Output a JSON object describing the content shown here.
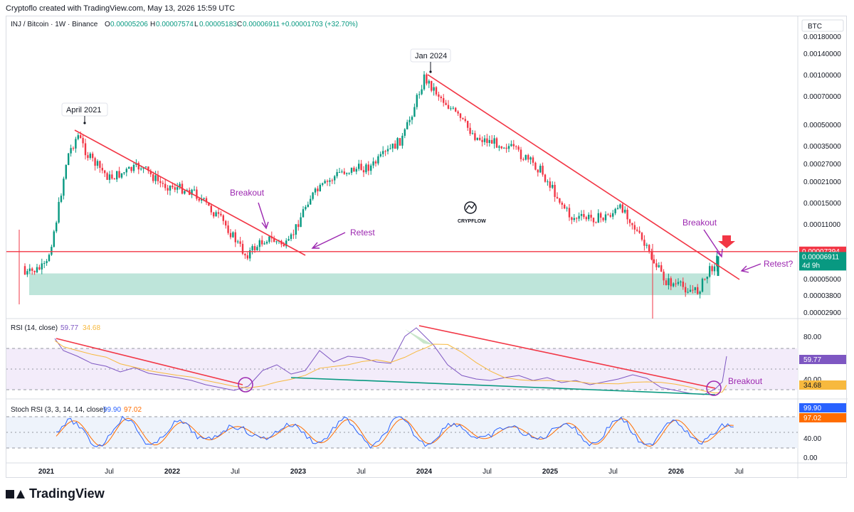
{
  "header": {
    "text": "Cryptoflo created with TradingView.com, May 13, 2026 15:59 UTC"
  },
  "footer": {
    "brand": "TradingView"
  },
  "chart_data": [
    {
      "type": "candlestick",
      "title": "INJ / Bitcoin · 1W · Binance",
      "ohlc_text": {
        "o_label": "O",
        "o": "0.00005206",
        "h_label": "H",
        "h": "0.00007574",
        "l_label": "L",
        "l": "0.00005183",
        "c_label": "C",
        "c": "0.00006911",
        "change": "+0.00001703 (+32.70%)"
      },
      "currency": "BTC",
      "y_scale": "log",
      "ylim": [
        2.7e-05,
        0.00021
      ],
      "y_ticks": [
        "0.00180000",
        "0.00140000",
        "0.00100000",
        "0.00070000",
        "0.00050000",
        "0.00035000",
        "0.00027000",
        "0.00021000",
        "0.00015000",
        "0.00011000",
        "0.00005000",
        "0.00003800",
        "0.00002900"
      ],
      "x_ticks": [
        "2021",
        "Jul",
        "2022",
        "Jul",
        "2023",
        "Jul",
        "2024",
        "Jul",
        "2025",
        "Jul",
        "2026",
        "Jul"
      ],
      "price_tags": [
        {
          "value": "0.00007394",
          "color": "#f23645"
        },
        {
          "value": "0.00006911",
          "sub": "4d 9h",
          "color": "#089981"
        }
      ],
      "close_series_approx": [
        {
          "x": "2021-01",
          "y": 6e-05
        },
        {
          "x": "2021-02",
          "y": 0.00012
        },
        {
          "x": "2021-03",
          "y": 0.0003
        },
        {
          "x": "2021-04",
          "y": 0.00042
        },
        {
          "x": "2021-05",
          "y": 0.0003
        },
        {
          "x": "2021-07",
          "y": 0.00022
        },
        {
          "x": "2021-10",
          "y": 0.00026
        },
        {
          "x": "2021-12",
          "y": 0.0002
        },
        {
          "x": "2022-03",
          "y": 0.00018
        },
        {
          "x": "2022-06",
          "y": 0.00011
        },
        {
          "x": "2022-08",
          "y": 7e-05
        },
        {
          "x": "2022-10",
          "y": 9e-05
        },
        {
          "x": "2022-12",
          "y": 8e-05
        },
        {
          "x": "2023-02",
          "y": 0.00016
        },
        {
          "x": "2023-05",
          "y": 0.00024
        },
        {
          "x": "2023-08",
          "y": 0.00026
        },
        {
          "x": "2023-11",
          "y": 0.0004
        },
        {
          "x": "2024-01",
          "y": 0.00095
        },
        {
          "x": "2024-03",
          "y": 0.00065
        },
        {
          "x": "2024-06",
          "y": 0.0004
        },
        {
          "x": "2024-09",
          "y": 0.00035
        },
        {
          "x": "2024-12",
          "y": 0.00025
        },
        {
          "x": "2025-03",
          "y": 0.00012
        },
        {
          "x": "2025-06",
          "y": 0.00012
        },
        {
          "x": "2025-08",
          "y": 0.00014
        },
        {
          "x": "2025-10",
          "y": 8e-05
        },
        {
          "x": "2025-12",
          "y": 4.8e-05
        },
        {
          "x": "2026-03",
          "y": 4e-05
        },
        {
          "x": "2026-05",
          "y": 6.911e-05
        }
      ],
      "annotations": [
        "April 2021",
        "Jan 2024",
        "Breakout",
        "Retest",
        "Breakout",
        "Retest?"
      ],
      "zones": [
        {
          "label": "",
          "from": 3.8e-05,
          "to": 5.4e-05,
          "color": "#a8dccd"
        }
      ],
      "horizontal_lines": [
        {
          "value": 7.394e-05,
          "color": "#f23645"
        }
      ],
      "watermark": "CRYPFLOW"
    },
    {
      "type": "line",
      "title": "RSI (14, close)",
      "values_text": [
        "59.77",
        "34.68"
      ],
      "series_colors": [
        "#7e57c2",
        "#f7b93e"
      ],
      "ylim": [
        20,
        90
      ],
      "y_ticks": [
        "80.00",
        "40.00"
      ],
      "bands": [
        70,
        60,
        30
      ],
      "annotations": [
        "Breakout"
      ]
    },
    {
      "type": "line",
      "title": "Stoch RSI (3, 3, 14, 14, close)",
      "values_text": [
        "99.90",
        "97.02"
      ],
      "series_colors": [
        "#2962ff",
        "#ff6d00"
      ],
      "ylim": [
        0,
        100
      ],
      "y_ticks": [
        "40.00",
        "0.00"
      ],
      "bands": [
        80,
        20
      ]
    }
  ]
}
